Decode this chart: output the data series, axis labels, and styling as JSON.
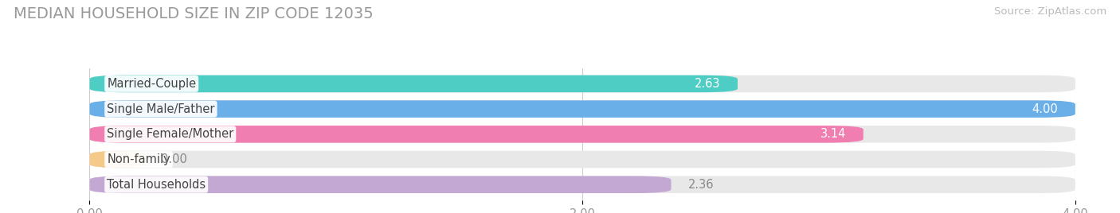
{
  "title": "MEDIAN HOUSEHOLD SIZE IN ZIP CODE 12035",
  "source": "Source: ZipAtlas.com",
  "categories": [
    "Married-Couple",
    "Single Male/Father",
    "Single Female/Mother",
    "Non-family",
    "Total Households"
  ],
  "values": [
    2.63,
    4.0,
    3.14,
    0.0,
    2.36
  ],
  "bar_colors": [
    "#4ecdc4",
    "#6aafe8",
    "#f07eb0",
    "#f5c98a",
    "#c4a8d4"
  ],
  "bar_bg_color": "#e8e8e8",
  "label_value_inside": [
    true,
    true,
    true,
    false,
    false
  ],
  "value_label_colors": [
    "white",
    "white",
    "white",
    "#888888",
    "#888888"
  ],
  "xlim": [
    0,
    4.0
  ],
  "xticks": [
    0.0,
    2.0,
    4.0
  ],
  "xtick_labels": [
    "0.00",
    "2.00",
    "4.00"
  ],
  "fig_bg_color": "#ffffff",
  "bar_height": 0.68,
  "bar_gap": 0.32,
  "title_fontsize": 14,
  "label_fontsize": 10.5,
  "value_fontsize": 10.5,
  "source_fontsize": 9.5,
  "nonfamily_bar_width": 0.22
}
